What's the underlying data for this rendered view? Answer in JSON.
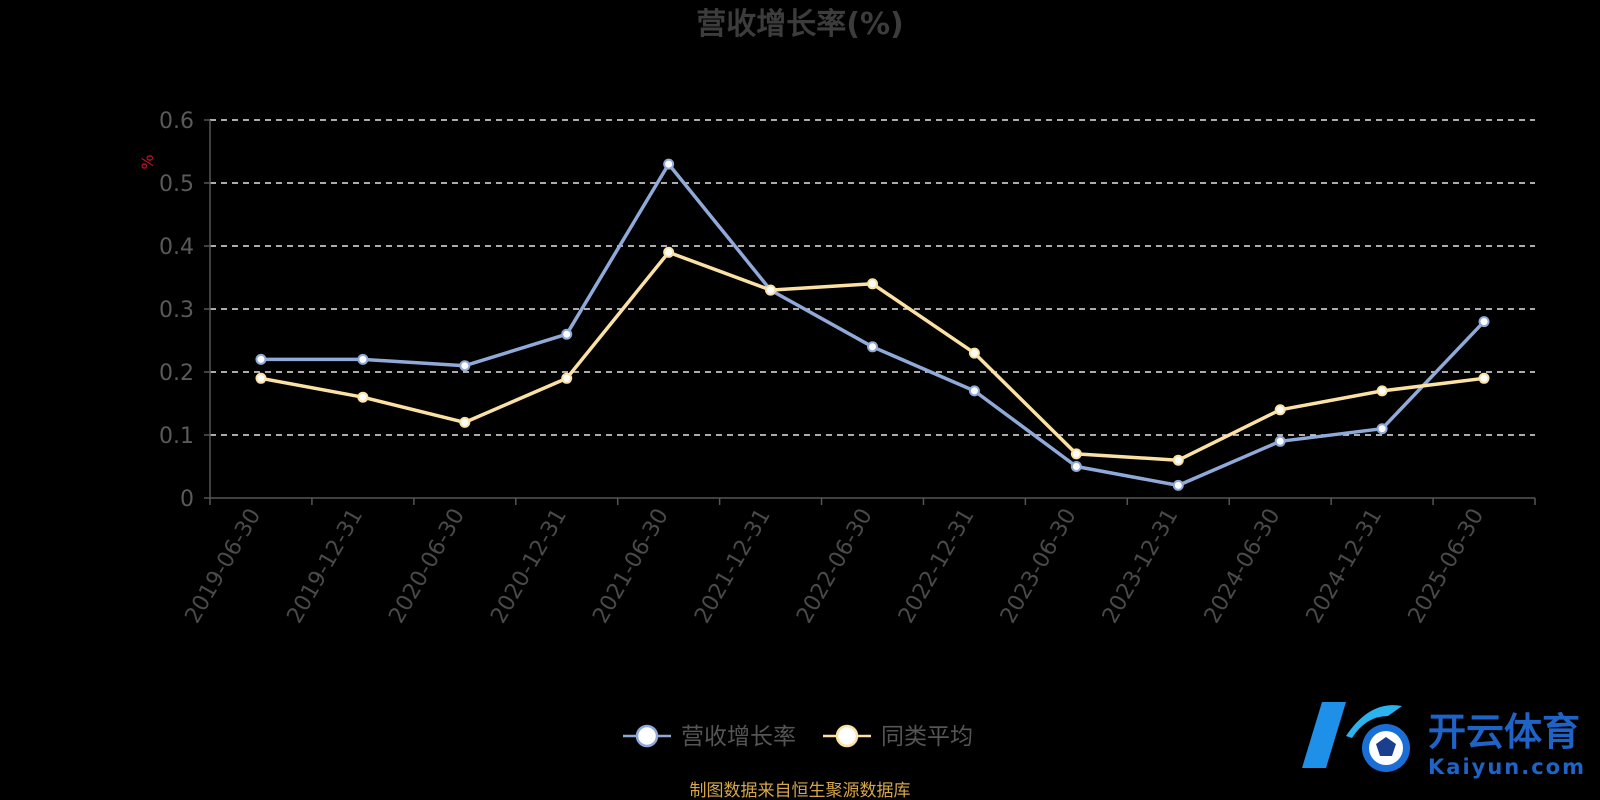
{
  "chart_data": {
    "type": "line",
    "title": "营收增长率(%)",
    "ylabel": "%",
    "ylim": [
      0,
      0.6
    ],
    "yticks": [
      "0",
      "0.1",
      "0.2",
      "0.3",
      "0.4",
      "0.5",
      "0.6"
    ],
    "grid": true,
    "legend_position": "bottom",
    "categories": [
      "2019-06-30",
      "2019-12-31",
      "2020-06-30",
      "2020-12-31",
      "2021-06-30",
      "2021-12-31",
      "2022-06-30",
      "2022-12-31",
      "2023-06-30",
      "2023-12-31",
      "2024-06-30",
      "2024-12-31",
      "2025-06-30"
    ],
    "series": [
      {
        "name": "营收增长率",
        "color": "#8fa9d8",
        "values": [
          0.22,
          0.22,
          0.21,
          0.26,
          0.53,
          0.33,
          0.24,
          0.17,
          0.05,
          0.02,
          0.09,
          0.11,
          0.28
        ]
      },
      {
        "name": "同类平均",
        "color": "#fbe1a4",
        "values": [
          0.19,
          0.16,
          0.12,
          0.19,
          0.39,
          0.33,
          0.34,
          0.23,
          0.07,
          0.06,
          0.14,
          0.17,
          0.19
        ]
      }
    ]
  },
  "source_note": "制图数据来自恒生聚源数据库",
  "watermark": {
    "text_cn": "开云体育",
    "text_en": "Kaiyun.com",
    "icon": "kaiyun-logo-icon"
  }
}
